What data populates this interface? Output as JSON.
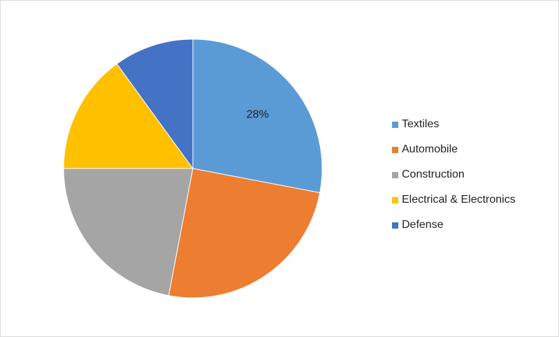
{
  "chart_data": {
    "type": "pie",
    "start_angle_deg": 0,
    "direction": "clockwise",
    "legend_position": "right",
    "slices": [
      {
        "label": "Textiles",
        "value": 28,
        "color": "#5b9bd5",
        "data_label": "28%"
      },
      {
        "label": "Automobile",
        "value": 25,
        "color": "#ed7d31",
        "data_label": ""
      },
      {
        "label": "Construction",
        "value": 22,
        "color": "#a5a5a5",
        "data_label": ""
      },
      {
        "label": "Electrical & Electronics",
        "value": 15,
        "color": "#ffc000",
        "data_label": ""
      },
      {
        "label": "Defense",
        "value": 10,
        "color": "#4472c4",
        "data_label": ""
      }
    ]
  }
}
